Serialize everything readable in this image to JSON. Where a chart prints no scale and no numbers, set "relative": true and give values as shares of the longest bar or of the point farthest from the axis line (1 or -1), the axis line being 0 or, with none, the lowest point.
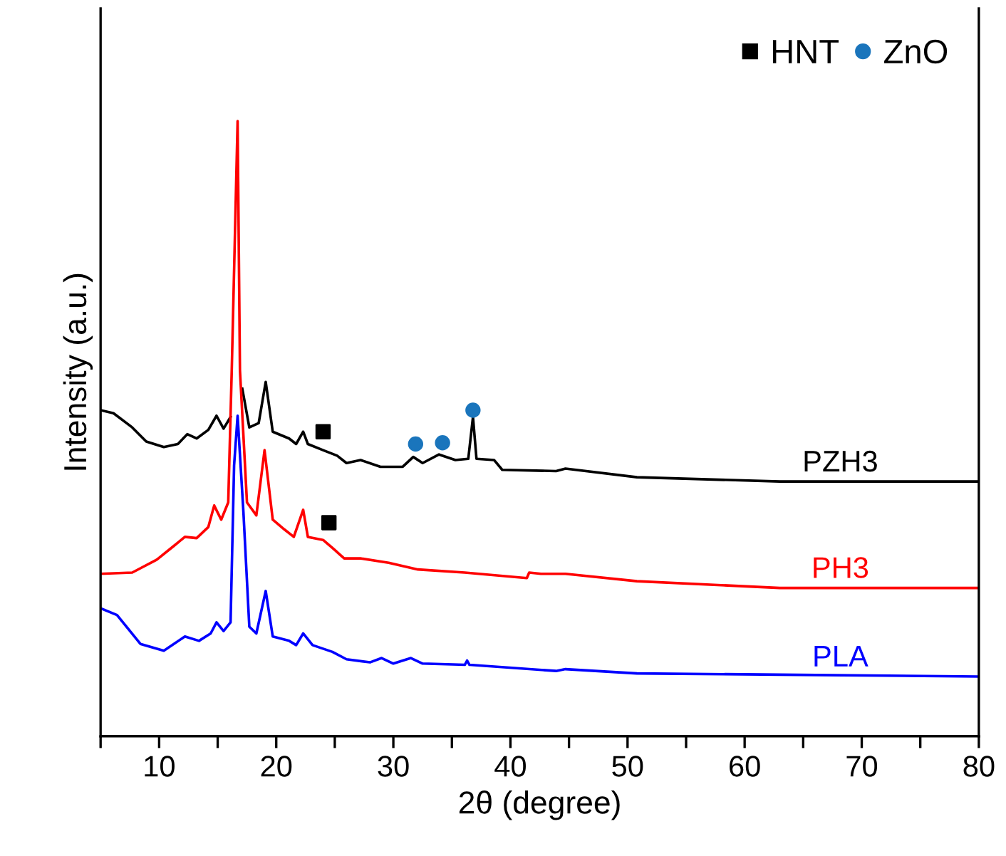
{
  "chart_data": {
    "type": "line",
    "relative": true,
    "xlabel": "2θ (degree)",
    "ylabel": "Intensity (a.u.)",
    "xlim": [
      5,
      80
    ],
    "xticks": [
      {
        "value": 5,
        "label": null
      },
      10,
      {
        "value": 15,
        "label": null
      },
      20,
      {
        "value": 25,
        "label": null
      },
      30,
      {
        "value": 35,
        "label": null
      },
      40,
      {
        "value": 45,
        "label": null
      },
      50,
      {
        "value": 55,
        "label": null
      },
      60,
      {
        "value": 65,
        "label": null
      },
      70,
      {
        "value": 75,
        "label": null
      },
      80
    ],
    "tick_labels": "x",
    "grid": false,
    "legend": "top right",
    "marker": "none",
    "line_style": "solid",
    "series": [
      {
        "name": "PZH3",
        "color": "#000000",
        "x": [
          5,
          6.1,
          7.7,
          8.9,
          10.4,
          11.6,
          12.4,
          13.2,
          14.2,
          14.9,
          15.5,
          16.1,
          16.3,
          16.7,
          17.1,
          17.7,
          18.5,
          19.1,
          19.7,
          21.1,
          21.7,
          22.3,
          22.7,
          24.0,
          25.2,
          26.0,
          27.2,
          28.9,
          30.8,
          31.7,
          32.5,
          33.9,
          35.3,
          36.4,
          36.8,
          37.1,
          38.6,
          39.3,
          43.9,
          44.7,
          50.8,
          63,
          80
        ],
        "values": [
          0.53,
          0.525,
          0.502,
          0.479,
          0.47,
          0.475,
          0.491,
          0.484,
          0.498,
          0.521,
          0.5,
          0.519,
          null,
          null,
          0.565,
          0.502,
          0.509,
          0.576,
          0.495,
          0.484,
          0.475,
          0.495,
          0.475,
          0.465,
          0.456,
          0.444,
          0.449,
          0.438,
          0.438,
          0.454,
          0.444,
          0.458,
          0.449,
          0.451,
          0.519,
          0.451,
          0.449,
          0.433,
          0.431,
          0.435,
          0.421,
          0.414,
          0.414
        ]
      },
      {
        "name": "PH3",
        "color": "#ff0000",
        "x": [
          5,
          7.7,
          9.8,
          11.3,
          12.2,
          13.2,
          14.2,
          14.7,
          15.3,
          15.9,
          16.2,
          16.7,
          16.9,
          17.5,
          18.3,
          19.0,
          19.7,
          20.7,
          21.5,
          22.3,
          22.7,
          24.0,
          24.8,
          25.8,
          27.2,
          29.6,
          32.1,
          36.1,
          41.4,
          41.6,
          42.6,
          44.7,
          50.8,
          63,
          80
        ],
        "values": [
          0.264,
          0.266,
          0.287,
          0.31,
          0.324,
          0.322,
          0.34,
          0.375,
          0.352,
          0.38,
          0.595,
          1,
          0.595,
          0.38,
          0.359,
          0.465,
          0.352,
          0.336,
          0.324,
          0.368,
          0.324,
          0.319,
          0.306,
          0.289,
          0.289,
          0.282,
          0.271,
          0.266,
          0.257,
          0.266,
          0.264,
          0.264,
          0.252,
          0.241,
          0.241
        ]
      },
      {
        "name": "PLA",
        "color": "#0000ff",
        "x": [
          5,
          6.4,
          8.4,
          10.4,
          12.2,
          13.4,
          14.4,
          14.9,
          15.5,
          16.1,
          16.4,
          16.7,
          17.2,
          17.7,
          18.3,
          19.1,
          19.7,
          21.1,
          21.7,
          22.3,
          23.1,
          24.8,
          26.0,
          28.0,
          29.0,
          30.0,
          31.5,
          32.5,
          36.1,
          36.3,
          36.5,
          43.9,
          44.7,
          50.8,
          63,
          80
        ],
        "values": [
          0.208,
          0.197,
          0.15,
          0.139,
          0.162,
          0.155,
          0.167,
          0.185,
          0.171,
          0.185,
          0.44,
          0.521,
          0.363,
          0.178,
          0.167,
          0.236,
          0.162,
          0.155,
          0.148,
          0.167,
          0.148,
          0.137,
          0.125,
          0.12,
          0.127,
          0.118,
          0.127,
          0.118,
          0.116,
          0.123,
          0.116,
          0.106,
          0.109,
          0.102,
          0.1,
          0.097
        ]
      },
      {
        "name": "HNT",
        "type": "scatter",
        "marker": "square",
        "color": "#000000",
        "x": [
          24.0,
          24.5
        ],
        "values": [
          0.495,
          0.347
        ]
      },
      {
        "name": "ZnO",
        "type": "scatter",
        "marker": "circle",
        "color": "#1a75bc",
        "x": [
          31.9,
          34.2,
          36.8
        ],
        "values": [
          0.475,
          0.477,
          0.53
        ]
      }
    ]
  }
}
